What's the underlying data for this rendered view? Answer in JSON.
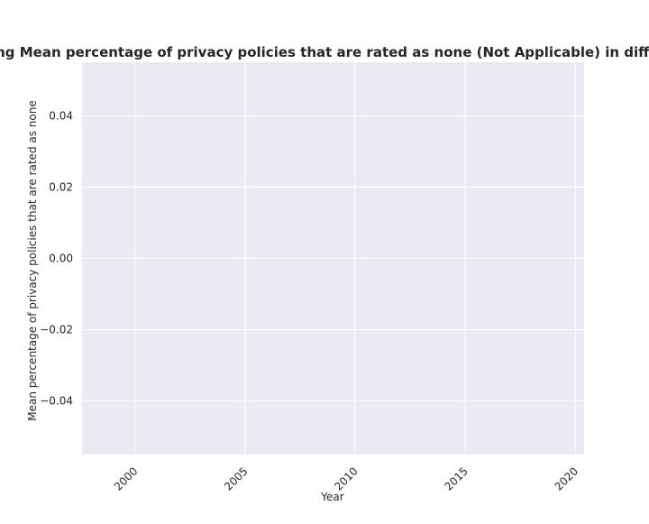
{
  "chart_data": {
    "type": "line",
    "title": "gaming Mean percentage of privacy policies that are rated as none (Not Applicable) in difficulty",
    "xlabel": "Year",
    "ylabel": "Mean percentage of privacy policies that are rated as none",
    "xlim": [
      1997.6,
      2020.4
    ],
    "ylim": [
      -0.055,
      0.055
    ],
    "x_ticks": [
      "2000",
      "2005",
      "2010",
      "2015",
      "2020"
    ],
    "x_tick_values": [
      2000,
      2005,
      2010,
      2015,
      2020
    ],
    "y_ticks": [
      "0.04",
      "0.02",
      "0.00",
      "−0.02",
      "−0.04"
    ],
    "y_tick_values": [
      0.04,
      0.02,
      0.0,
      -0.02,
      -0.04
    ],
    "series": [],
    "grid": true,
    "legend": "none",
    "colors": {
      "plot_background": "#eaeaf2",
      "grid": "#ffffff",
      "text": "#262626"
    }
  }
}
